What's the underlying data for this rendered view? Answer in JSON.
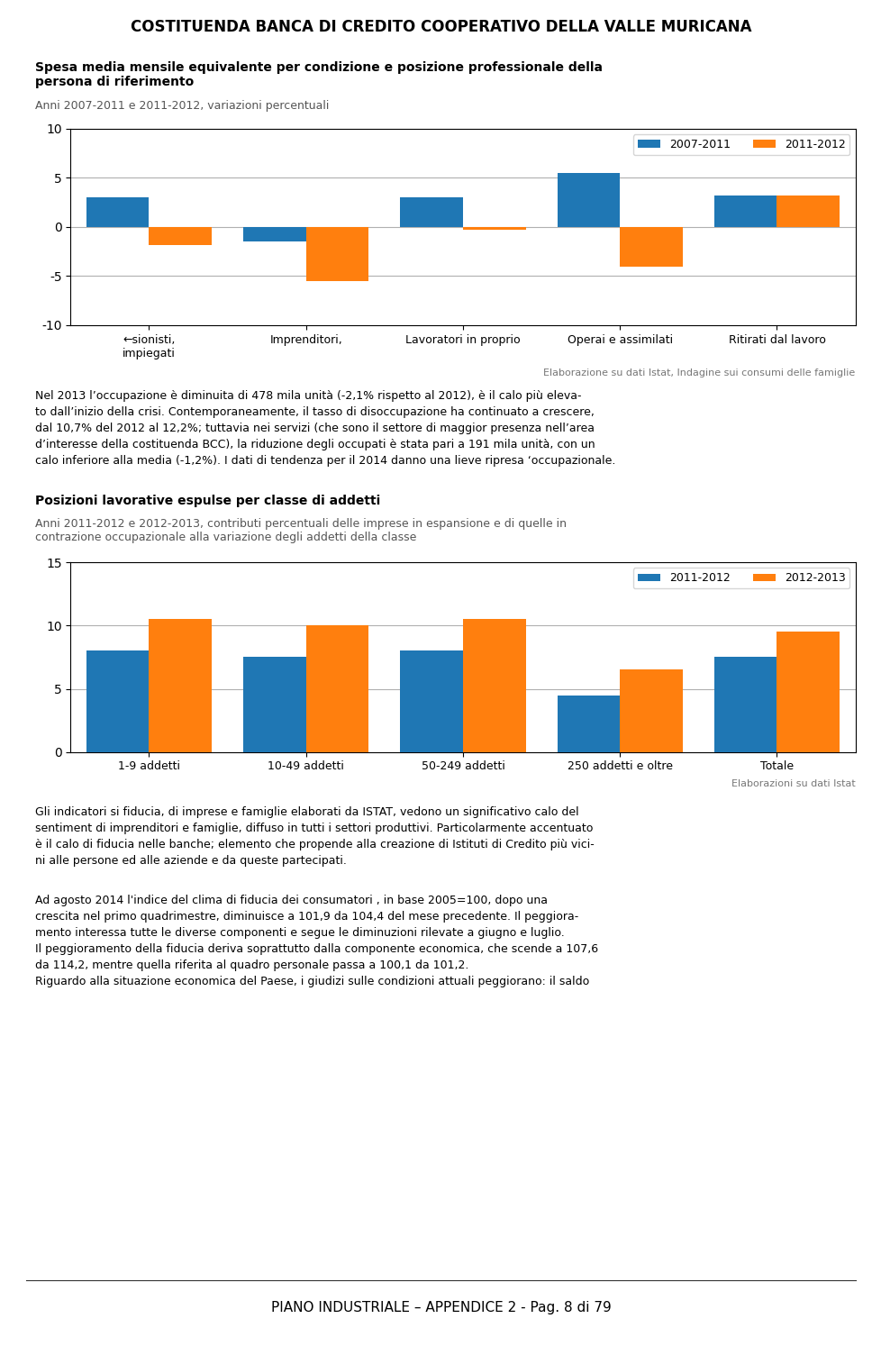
{
  "title": "COSTITUENDA BANCA DI CREDITO COOPERATIVO DELLA VALLE MURICANA",
  "chart_data": [
    {
      "type": "bar",
      "title": "Spesa media mensile equivalente per condizione e posizione professionale della\npersona di riferimento",
      "subtitle": "Anni 2007-2011 e 2011-2012, variazioni percentuali",
      "categories": [
        "←sionisti,\nimpiegati",
        "Imprenditori,",
        "Lavoratori in proprio",
        "Operai e assimilati",
        "Ritirati dal lavoro"
      ],
      "series": [
        {
          "name": "2007-2011",
          "values": [
            3.0,
            -1.5,
            3.0,
            5.5,
            3.2
          ]
        },
        {
          "name": "2011-2012",
          "values": [
            -1.8,
            -5.5,
            -0.3,
            -4.0,
            3.2
          ]
        }
      ],
      "ylim": [
        -10,
        10
      ],
      "yticks": [
        -10,
        -5,
        0,
        5,
        10
      ],
      "grid": true,
      "legend": "upper right",
      "annotations": [
        "Elaborazione su dati Istat, Indagine sui consumi delle famiglie"
      ]
    },
    {
      "type": "bar",
      "title": "Posizioni lavorative espulse per classe di addetti",
      "subtitle": "Anni 2011-2012 e 2012-2013, contributi percentuali delle imprese in espansione e di quelle in\ncontrazione occupazionale alla variazione degli addetti della classe",
      "categories": [
        "1-9 addetti",
        "10-49 addetti",
        "50-249 addetti",
        "250 addetti e oltre",
        "Totale"
      ],
      "series": [
        {
          "name": "2011-2012",
          "values": [
            8.0,
            7.5,
            8.0,
            4.5,
            7.5
          ]
        },
        {
          "name": "2012-2013",
          "values": [
            10.5,
            10.0,
            10.5,
            6.5,
            9.5
          ]
        }
      ],
      "ylim": [
        0,
        15
      ],
      "yticks": [
        0,
        5,
        10,
        15
      ],
      "grid": true,
      "legend": "upper right",
      "annotations": [
        "Elaborazioni su dati Istat"
      ]
    }
  ],
  "annotations": [
    "Nel 2013 l’occupazione è diminuita di 478 mila unità (-2,1% rispetto al 2012), è il calo più eleva-\nto dall’inizio della crisi. Contemporaneamente, il tasso di disoccupazione ha continuato a crescere,\ndal 10,7% del 2012 al 12,2%; tuttavia nei servizi (che sono il settore di maggior presenza nell’area\nd’interesse della costituenda BCC), la riduzione degli occupati è stata pari a 191 mila unità, con un\ncalo inferiore alla media (-1,2%). I dati di tendenza per il 2014 danno una lieve ripresa ‘occupazionale.",
    "Gli indicatori si fiducia, di imprese e famiglie elaborati da ISTAT, vedono un significativo calo del\nsentiment di imprenditori e famiglie, diffuso in tutti i settori produttivi. Particolarmente accentuato\nè il calo di fiducia nelle banche; elemento che propende alla creazione di Istituti di Credito più vici-\nni alle persone ed alle aziende e da queste partecipati.",
    "Ad agosto 2014 l'indice del clima di fiducia dei consumatori , in base 2005=100, dopo una\ncrescita nel primo quadrimestre, diminuisce a 101,9 da 104,4 del mese precedente. Il peggiora-\nmento interessa tutte le diverse componenti e segue le diminuzioni rilevate a giugno e luglio.\nIl peggioramento della fiducia deriva soprattutto dalla componente economica, che scende a 107,6\nda 114,2, mentre quella riferita al quadro personale passa a 100,1 da 101,2.\nRiguardo alla situazione economica del Paese, i giudizi sulle condizioni attuali peggiorano: il saldo",
    "PIANO INDUSTRIALE – APPENDICE 2 - Pag. 8 di 79"
  ]
}
